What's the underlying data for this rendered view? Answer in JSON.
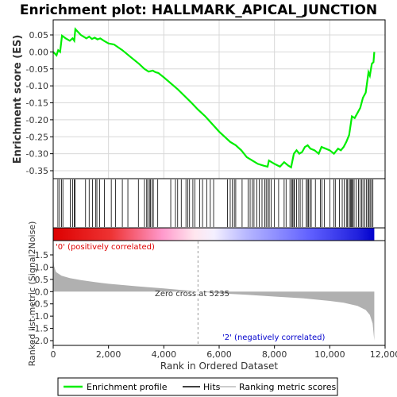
{
  "title": "Enrichment plot: HALLMARK_APICAL_JUNCTION",
  "axes": {
    "es_ylabel": "Enrichment score (ES)",
    "metric_ylabel": "Ranked list metric (Signal2Noise)",
    "xlabel": "Rank in Ordered Dataset"
  },
  "annotations": {
    "positive": "'0' (positively correlated)",
    "negative": "'2' (negatively correlated)",
    "zero_cross": "Zero cross at 5235"
  },
  "legend": {
    "items": [
      {
        "label": "Enrichment profile",
        "color": "#00ee00"
      },
      {
        "label": "Hits",
        "color": "#000000"
      },
      {
        "label": "Ranking metric scores",
        "color": "#bbbbbb"
      }
    ]
  },
  "colors": {
    "enrichment": "#00ee00",
    "positive_band": "#ff0000",
    "negative_band": "#0000ff",
    "metric_fill": "#b0b0b0"
  },
  "chart_data": [
    {
      "type": "line",
      "name": "enrichment-profile",
      "xlim": [
        0,
        12000
      ],
      "ylim": [
        -0.36,
        0.08
      ],
      "xticks": [
        0,
        2000,
        4000,
        6000,
        8000,
        10000,
        12000
      ],
      "xtick_labels": [
        "0",
        "2,000",
        "4,000",
        "6,000",
        "8,000",
        "10,000",
        "12,000"
      ],
      "yticks": [
        0.05,
        0.0,
        -0.05,
        -0.1,
        -0.15,
        -0.2,
        -0.25,
        -0.3,
        -0.35
      ],
      "ytick_labels": [
        "0.05",
        "0.00",
        "-0.05",
        "-0.10",
        "-0.15",
        "-0.20",
        "-0.25",
        "-0.30",
        "-0.35"
      ],
      "grid": true,
      "points": [
        [
          0,
          0.0
        ],
        [
          120,
          -0.01
        ],
        [
          180,
          0.005
        ],
        [
          250,
          0.0
        ],
        [
          320,
          0.048
        ],
        [
          450,
          0.04
        ],
        [
          600,
          0.033
        ],
        [
          700,
          0.04
        ],
        [
          760,
          0.033
        ],
        [
          800,
          0.067
        ],
        [
          1000,
          0.05
        ],
        [
          1200,
          0.04
        ],
        [
          1300,
          0.045
        ],
        [
          1400,
          0.038
        ],
        [
          1500,
          0.042
        ],
        [
          1600,
          0.037
        ],
        [
          1700,
          0.04
        ],
        [
          1850,
          0.032
        ],
        [
          2000,
          0.025
        ],
        [
          2200,
          0.022
        ],
        [
          2500,
          0.005
        ],
        [
          2800,
          -0.015
        ],
        [
          3100,
          -0.035
        ],
        [
          3300,
          -0.05
        ],
        [
          3450,
          -0.058
        ],
        [
          3600,
          -0.055
        ],
        [
          3700,
          -0.06
        ],
        [
          3800,
          -0.062
        ],
        [
          4000,
          -0.075
        ],
        [
          4500,
          -0.11
        ],
        [
          5000,
          -0.15
        ],
        [
          5235,
          -0.17
        ],
        [
          5500,
          -0.19
        ],
        [
          6000,
          -0.235
        ],
        [
          6400,
          -0.265
        ],
        [
          6600,
          -0.275
        ],
        [
          6800,
          -0.29
        ],
        [
          7000,
          -0.31
        ],
        [
          7200,
          -0.32
        ],
        [
          7400,
          -0.33
        ],
        [
          7600,
          -0.335
        ],
        [
          7750,
          -0.338
        ],
        [
          7800,
          -0.32
        ],
        [
          8000,
          -0.33
        ],
        [
          8200,
          -0.338
        ],
        [
          8350,
          -0.325
        ],
        [
          8500,
          -0.335
        ],
        [
          8600,
          -0.34
        ],
        [
          8700,
          -0.3
        ],
        [
          8800,
          -0.29
        ],
        [
          8900,
          -0.3
        ],
        [
          9000,
          -0.295
        ],
        [
          9100,
          -0.28
        ],
        [
          9200,
          -0.275
        ],
        [
          9300,
          -0.285
        ],
        [
          9450,
          -0.29
        ],
        [
          9600,
          -0.3
        ],
        [
          9700,
          -0.28
        ],
        [
          9850,
          -0.285
        ],
        [
          10000,
          -0.29
        ],
        [
          10150,
          -0.3
        ],
        [
          10300,
          -0.285
        ],
        [
          10400,
          -0.29
        ],
        [
          10500,
          -0.28
        ],
        [
          10600,
          -0.265
        ],
        [
          10700,
          -0.245
        ],
        [
          10800,
          -0.19
        ],
        [
          10900,
          -0.195
        ],
        [
          11000,
          -0.18
        ],
        [
          11100,
          -0.165
        ],
        [
          11200,
          -0.135
        ],
        [
          11300,
          -0.12
        ],
        [
          11400,
          -0.06
        ],
        [
          11450,
          -0.07
        ],
        [
          11520,
          -0.035
        ],
        [
          11580,
          -0.03
        ],
        [
          11610,
          0.0
        ]
      ]
    },
    {
      "type": "area",
      "name": "ranked-list-metric",
      "xlim": [
        0,
        12000
      ],
      "ylim": [
        -2.1,
        1.8
      ],
      "yticks": [
        1.5,
        1.0,
        0.5,
        0.0,
        -0.5,
        -1.0,
        -1.5,
        -2.0
      ],
      "ytick_labels": [
        "1.5",
        "1.0",
        "0.5",
        "0.0",
        "-0.5",
        "-1.0",
        "-1.5",
        "-2.0"
      ],
      "points": [
        [
          0,
          1.6
        ],
        [
          30,
          1.05
        ],
        [
          100,
          0.8
        ],
        [
          300,
          0.65
        ],
        [
          600,
          0.55
        ],
        [
          1000,
          0.47
        ],
        [
          1500,
          0.39
        ],
        [
          2000,
          0.32
        ],
        [
          3000,
          0.22
        ],
        [
          4000,
          0.13
        ],
        [
          5000,
          0.03
        ],
        [
          5235,
          0.0
        ],
        [
          6000,
          -0.07
        ],
        [
          7000,
          -0.13
        ],
        [
          8000,
          -0.2
        ],
        [
          9000,
          -0.27
        ],
        [
          10000,
          -0.38
        ],
        [
          10500,
          -0.45
        ],
        [
          11000,
          -0.58
        ],
        [
          11300,
          -0.75
        ],
        [
          11450,
          -0.95
        ],
        [
          11550,
          -1.3
        ],
        [
          11610,
          -2.0
        ]
      ],
      "zero_cross": 5235
    }
  ],
  "hits": [
    170,
    230,
    300,
    350,
    620,
    700,
    760,
    790,
    1170,
    1300,
    1420,
    1540,
    1580,
    1680,
    1850,
    2100,
    2250,
    2500,
    2700,
    3080,
    3300,
    3380,
    3420,
    3480,
    3520,
    3570,
    3620,
    3780,
    4250,
    4420,
    4500,
    4630,
    4800,
    4870,
    4930,
    5050,
    5120,
    5300,
    5400,
    5550,
    5680,
    5800,
    6300,
    6400,
    6480,
    6550,
    6600,
    6830,
    7050,
    7120,
    7200,
    7260,
    7360,
    7450,
    7550,
    7650,
    7700,
    7760,
    7810,
    7880,
    8000,
    8150,
    8350,
    8420,
    8560,
    8620,
    8650,
    8700,
    8720,
    8800,
    8870,
    8930,
    9010,
    9150,
    9190,
    9230,
    9280,
    9330,
    9480,
    9660,
    9720,
    9800,
    10000,
    10150,
    10200,
    10350,
    10450,
    10520,
    10600,
    10640,
    10700,
    10740,
    10770,
    10800,
    10830,
    10880,
    10950,
    11040,
    11090,
    11150,
    11200,
    11270,
    11330,
    11380,
    11420,
    11460,
    11510,
    11560
  ]
}
